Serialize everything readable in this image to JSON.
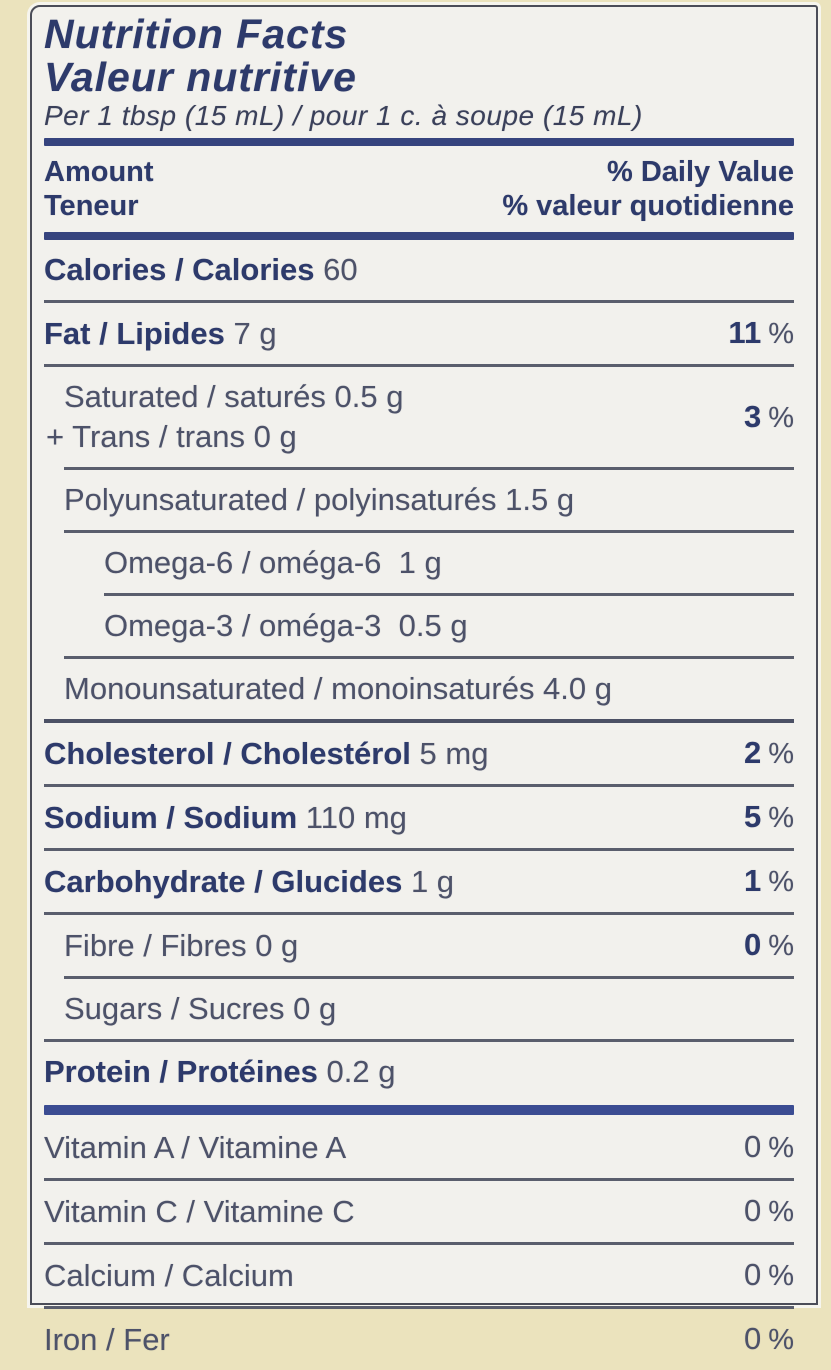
{
  "label": {
    "title_en": "Nutrition Facts",
    "title_fr": "Valeur nutritive",
    "serving": "Per 1 tbsp (15 mL) / pour 1 c. à soupe (15 mL)",
    "header": {
      "amount_en": "Amount",
      "amount_fr": "Teneur",
      "daily_value_en": "% Daily Value",
      "daily_value_fr": "% valeur quotidienne"
    },
    "rows": [
      {
        "id": "calories",
        "bold": "Calories / Calories",
        "rest": " 60",
        "pct": null,
        "indent": 0,
        "rule": {
          "indent": 0,
          "weight": "thin"
        }
      },
      {
        "id": "fat",
        "bold": "Fat / Lipides",
        "rest": " 7 g",
        "pct": "11",
        "pct_bold": true,
        "indent": 0,
        "rule": {
          "indent": 0,
          "weight": "thin"
        }
      },
      {
        "id": "saturated-trans",
        "bold": "",
        "rest": "Saturated / saturés 0.5 g",
        "line2": "+ Trans / trans 0 g",
        "pct": "3",
        "pct_bold": true,
        "indent": 1,
        "rule": {
          "indent": 1,
          "weight": "thin"
        }
      },
      {
        "id": "polyunsaturated",
        "bold": "",
        "rest": "Polyunsaturated / polyinsaturés 1.5 g",
        "pct": null,
        "indent": 1,
        "rule": {
          "indent": 1,
          "weight": "thin"
        }
      },
      {
        "id": "omega-6",
        "bold": "",
        "rest": "Omega-6 / oméga-6  1 g",
        "pct": null,
        "indent": 2,
        "rule": {
          "indent": 2,
          "weight": "thin"
        }
      },
      {
        "id": "omega-3",
        "bold": "",
        "rest": "Omega-3 / oméga-3  0.5 g",
        "pct": null,
        "indent": 2,
        "rule": {
          "indent": 1,
          "weight": "thin"
        }
      },
      {
        "id": "monounsaturated",
        "bold": "",
        "rest": "Monounsaturated / monoinsaturés 4.0 g",
        "pct": null,
        "indent": 1,
        "rule": {
          "indent": 0,
          "weight": "medium"
        }
      },
      {
        "id": "cholesterol",
        "bold": "Cholesterol / Cholestérol",
        "rest": " 5 mg",
        "pct": "2",
        "pct_bold": true,
        "indent": 0,
        "rule": {
          "indent": 0,
          "weight": "thin"
        }
      },
      {
        "id": "sodium",
        "bold": "Sodium / Sodium",
        "rest": " 110 mg",
        "pct": "5",
        "pct_bold": true,
        "indent": 0,
        "rule": {
          "indent": 0,
          "weight": "thin"
        }
      },
      {
        "id": "carbohydrate",
        "bold": "Carbohydrate / Glucides",
        "rest": " 1 g",
        "pct": "1",
        "pct_bold": true,
        "indent": 0,
        "rule": {
          "indent": 0,
          "weight": "thin"
        }
      },
      {
        "id": "fibre",
        "bold": "",
        "rest": "Fibre / Fibres 0 g",
        "pct": "0",
        "pct_bold": true,
        "indent": 1,
        "rule": {
          "indent": 1,
          "weight": "thin"
        }
      },
      {
        "id": "sugars",
        "bold": "",
        "rest": "Sugars / Sucres 0 g",
        "pct": null,
        "indent": 1,
        "rule": {
          "indent": 0,
          "weight": "thin"
        }
      },
      {
        "id": "protein",
        "bold": "Protein / Protéines",
        "rest": " 0.2 g",
        "pct": null,
        "indent": 0,
        "rule": {
          "indent": 0,
          "weight": "thickblue"
        }
      },
      {
        "id": "vitamin-a",
        "bold": "",
        "rest": "Vitamin A / Vitamine A",
        "pct": "0",
        "pct_bold": false,
        "indent": 0,
        "rule": {
          "indent": 0,
          "weight": "thin"
        }
      },
      {
        "id": "vitamin-c",
        "bold": "",
        "rest": "Vitamin C / Vitamine C",
        "pct": "0",
        "pct_bold": false,
        "indent": 0,
        "rule": {
          "indent": 0,
          "weight": "thin"
        }
      },
      {
        "id": "calcium",
        "bold": "",
        "rest": "Calcium / Calcium",
        "pct": "0",
        "pct_bold": false,
        "indent": 0,
        "rule": {
          "indent": 0,
          "weight": "thin"
        }
      },
      {
        "id": "iron",
        "bold": "",
        "rest": "Iron / Fer",
        "pct": "0",
        "pct_bold": false,
        "indent": 0,
        "rule": null
      }
    ],
    "percent_symbol": "%",
    "colors": {
      "package_cream": "#ebe3bd",
      "label_background": "#f2f1ed",
      "navy_text": "#2d3a6b",
      "body_text": "#4d5269",
      "thin_rule": "#5a5e6d",
      "thick_header_rule": "#36447e",
      "protein_bar": "#3b4c92",
      "label_border": "#4b4d58"
    }
  }
}
